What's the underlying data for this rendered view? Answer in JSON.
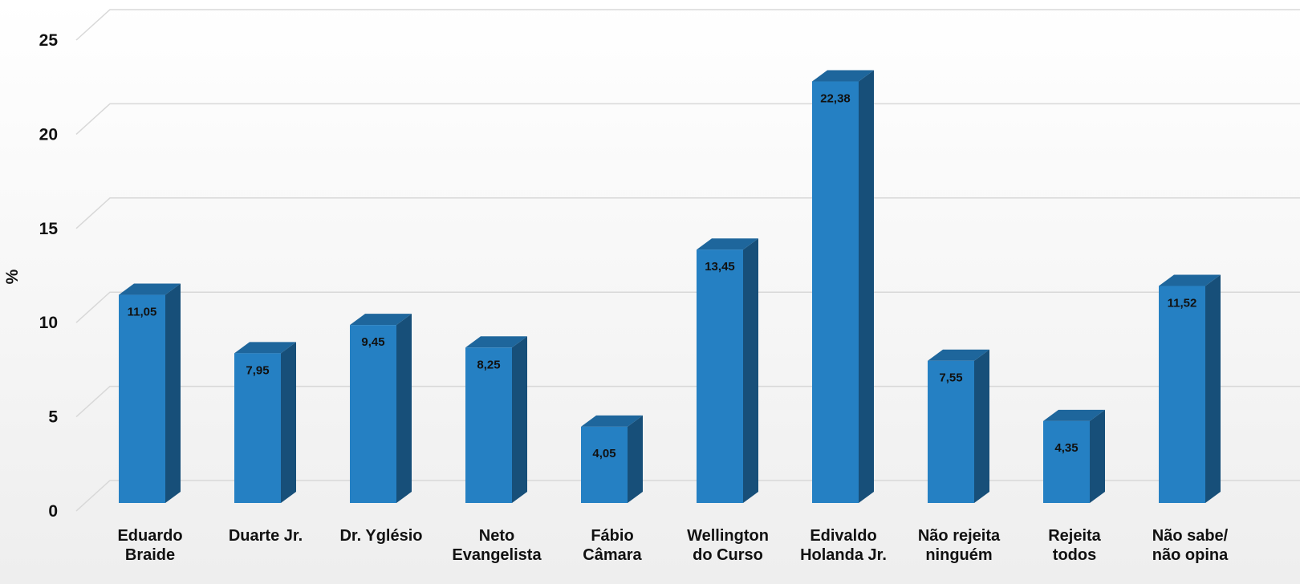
{
  "chart_data": {
    "type": "bar3d",
    "y_label": "%",
    "categories": [
      "Eduardo\nBraide",
      "Duarte Jr.",
      "Dr. Yglésio",
      "Neto\nEvangelista",
      "Fábio\nCâmara",
      "Wellington\ndo Curso",
      "Edivaldo\nHolanda Jr.",
      "Não rejeita\nninguém",
      "Rejeita\ntodos",
      "Não sabe/\nnão opina"
    ],
    "values": [
      11.05,
      7.95,
      9.45,
      8.25,
      4.05,
      13.45,
      22.38,
      7.55,
      4.35,
      11.52
    ],
    "value_labels": [
      "11,05",
      "7,95",
      "9,45",
      "8,25",
      "4,05",
      "13,45",
      "22,38",
      "7,55",
      "4,35",
      "11,52"
    ],
    "color": "#2580c3",
    "ylim": [
      0,
      25
    ],
    "yticks": [
      0,
      5,
      10,
      15,
      20,
      25
    ],
    "grid": true
  }
}
